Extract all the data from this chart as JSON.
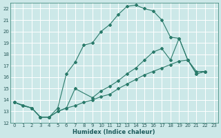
{
  "xlabel": "Humidex (Indice chaleur)",
  "bg_color": "#cce8e8",
  "grid_color": "#ffffff",
  "line_color": "#2a7a6a",
  "xlim": [
    -0.5,
    23.5
  ],
  "ylim": [
    12,
    22.5
  ],
  "xticks": [
    0,
    1,
    2,
    3,
    4,
    5,
    6,
    7,
    8,
    9,
    10,
    11,
    12,
    13,
    14,
    15,
    16,
    17,
    18,
    19,
    20,
    21,
    22,
    23
  ],
  "yticks": [
    12,
    13,
    14,
    15,
    16,
    17,
    18,
    19,
    20,
    21,
    22
  ],
  "line1_x": [
    0,
    1,
    2,
    3,
    4,
    5,
    6,
    7,
    8,
    9,
    10,
    11,
    12,
    13,
    14,
    15,
    16,
    17,
    18,
    19,
    20,
    21,
    22
  ],
  "line1_y": [
    13.8,
    13.5,
    13.3,
    12.5,
    12.5,
    13.3,
    16.3,
    17.3,
    18.8,
    19.0,
    20.0,
    20.6,
    21.5,
    22.2,
    22.3,
    22.0,
    21.8,
    21.0,
    19.5,
    19.4,
    17.5,
    16.3,
    16.5
  ],
  "line2_x": [
    0,
    2,
    3,
    4,
    5,
    6,
    7,
    9,
    10,
    11,
    12,
    13,
    14,
    15,
    16,
    17,
    18,
    19,
    20,
    21,
    22
  ],
  "line2_y": [
    13.8,
    13.3,
    12.5,
    12.5,
    13.0,
    13.3,
    15.0,
    14.2,
    14.8,
    15.2,
    15.7,
    16.3,
    16.8,
    17.5,
    18.2,
    18.5,
    17.5,
    19.4,
    17.5,
    16.5,
    16.5
  ],
  "line3_x": [
    0,
    1,
    2,
    3,
    4,
    5,
    6,
    7,
    8,
    9,
    10,
    11,
    12,
    13,
    14,
    15,
    16,
    17,
    18,
    19,
    20,
    21,
    22
  ],
  "line3_y": [
    13.8,
    13.5,
    13.3,
    12.5,
    12.5,
    13.0,
    13.3,
    13.5,
    13.8,
    14.0,
    14.3,
    14.5,
    15.0,
    15.4,
    15.8,
    16.2,
    16.5,
    16.8,
    17.1,
    17.4,
    17.5,
    16.3,
    16.5
  ]
}
